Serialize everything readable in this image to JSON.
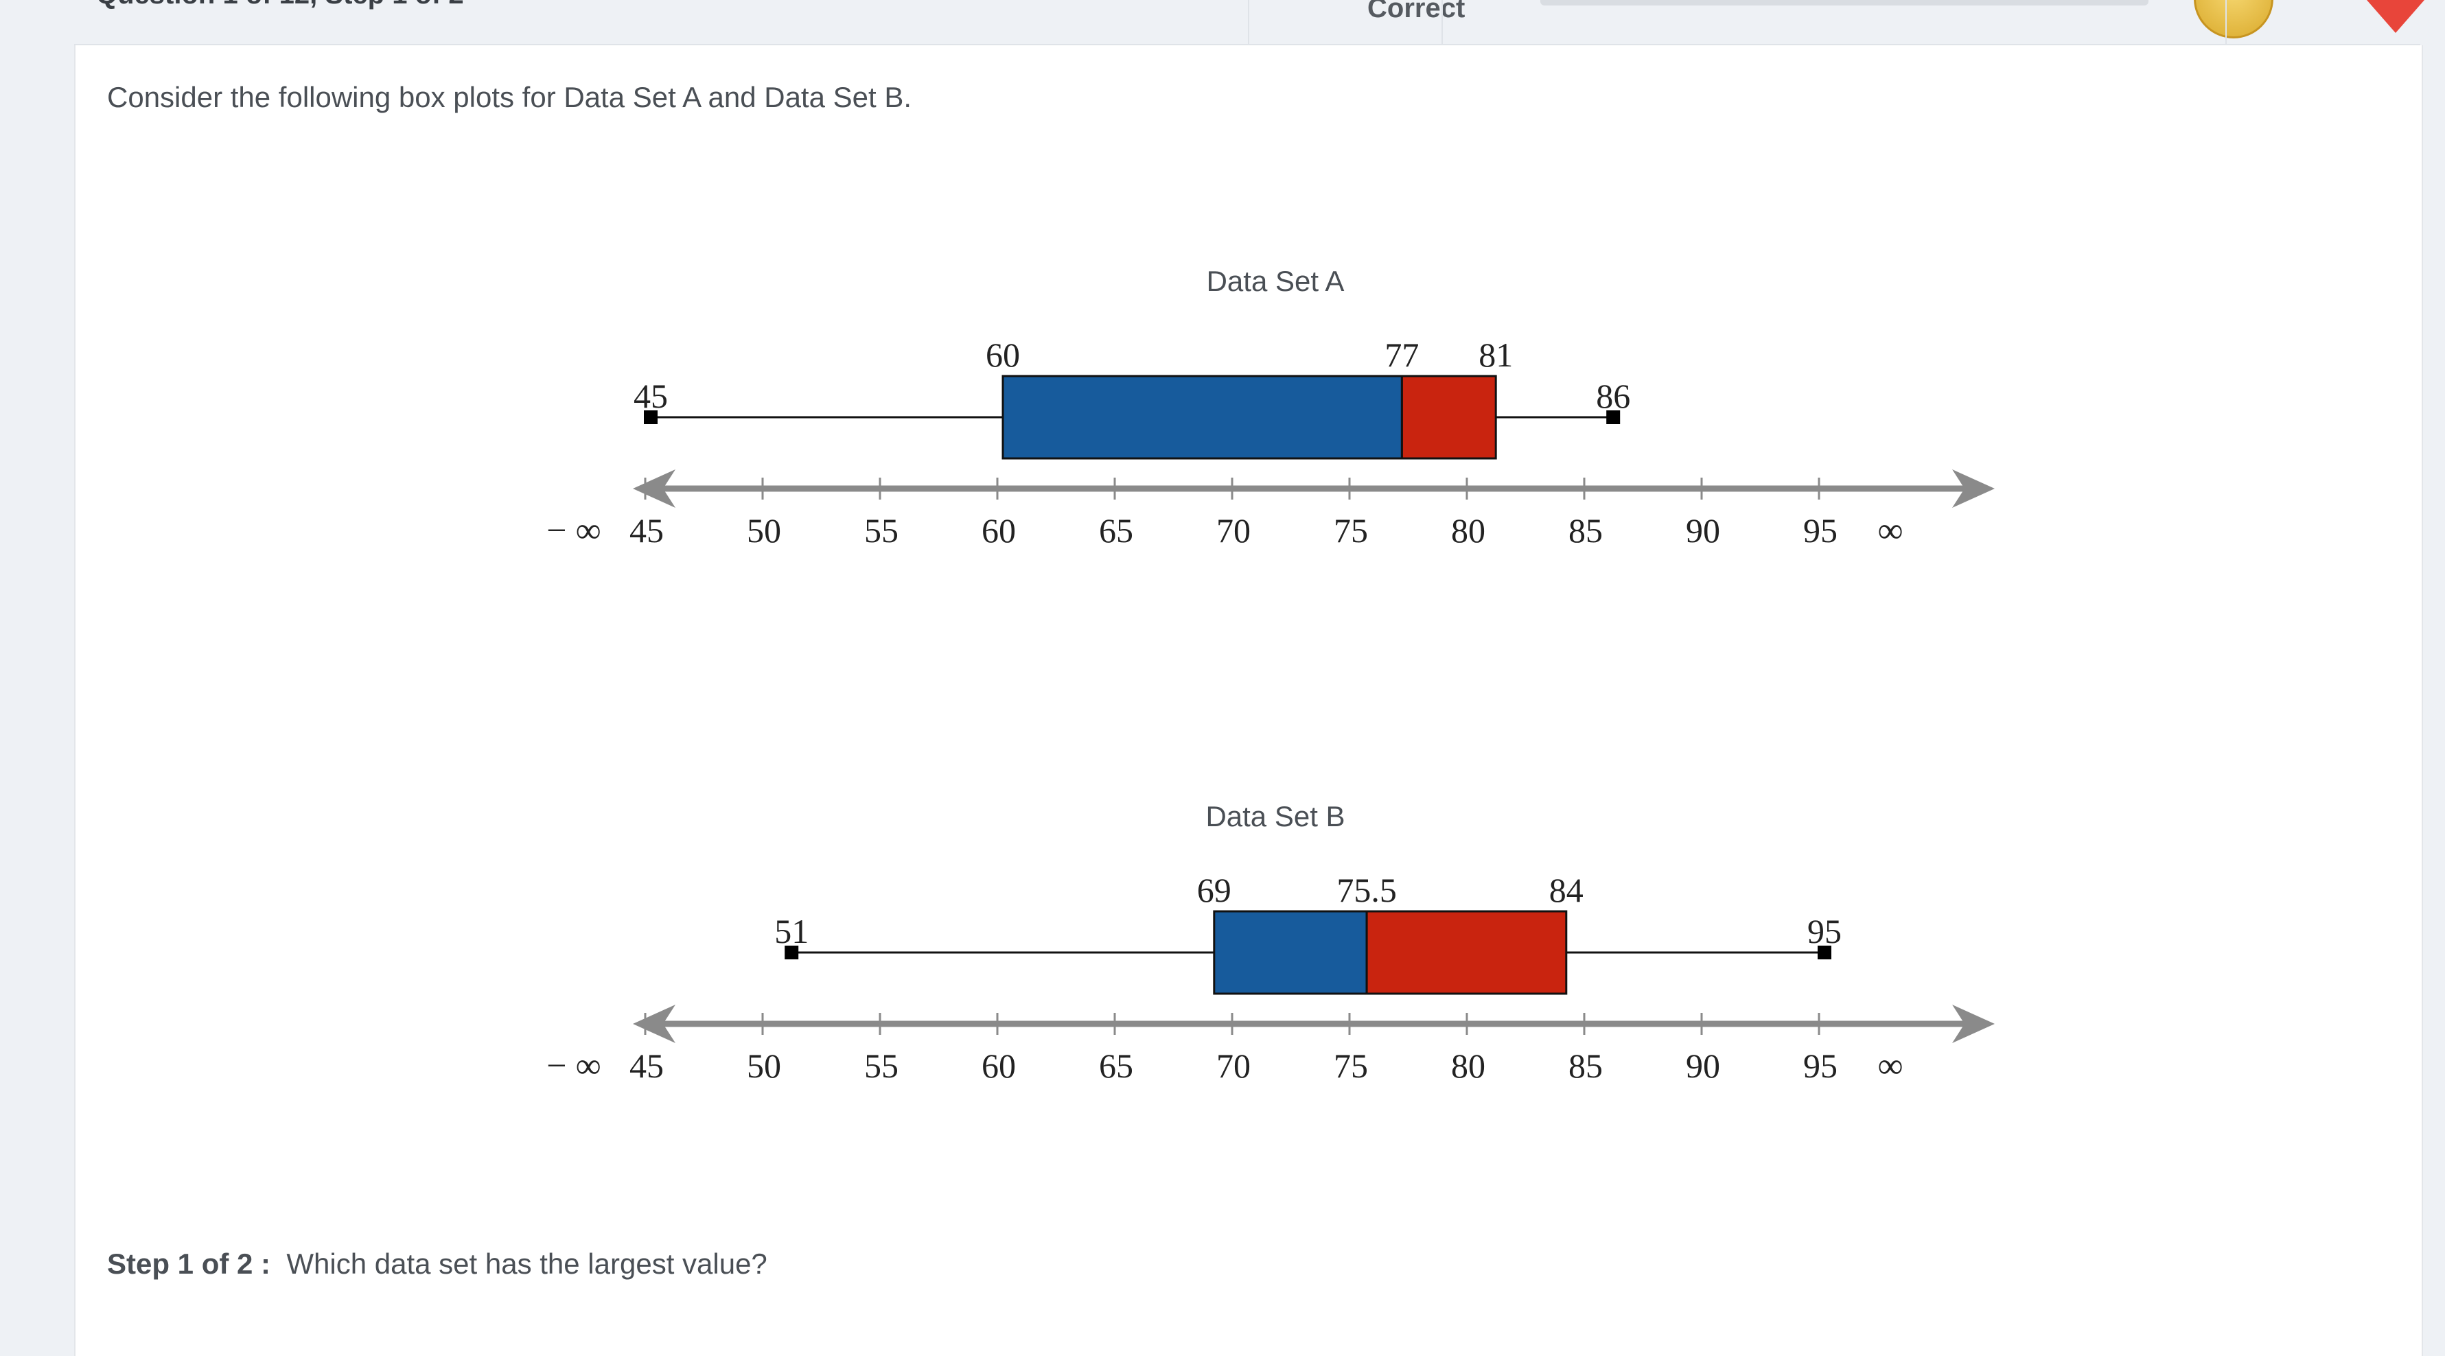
{
  "header": {
    "question_progress": "Question 1 of 12, Step 1 of 2",
    "status": "Correct"
  },
  "prompt": "Consider the following box plots for Data Set A and Data Set B.",
  "step": {
    "label": "Step 1 of 2 :",
    "question": "Which data set has the largest value?"
  },
  "colors": {
    "lower_box": "#175b9c",
    "upper_box": "#c9240f",
    "axis": "#8a8a8a"
  },
  "chart_data": [
    {
      "type": "boxplot",
      "title": "Data Set A",
      "min": 45,
      "q1": 60,
      "median": 77,
      "q3": 81,
      "max": 86,
      "labels": [
        "45",
        "60",
        "77",
        "81",
        "86"
      ],
      "axis": {
        "ticks": [
          45,
          50,
          55,
          60,
          65,
          70,
          75,
          80,
          85,
          90,
          95
        ],
        "tick_labels": [
          "45",
          "50",
          "55",
          "60",
          "65",
          "70",
          "75",
          "80",
          "85",
          "90",
          "95"
        ],
        "left_label": "− ∞",
        "right_label": "∞",
        "range": [
          45,
          95
        ]
      }
    },
    {
      "type": "boxplot",
      "title": "Data Set B",
      "min": 51,
      "q1": 69,
      "median": 75.5,
      "q3": 84,
      "max": 95,
      "labels": [
        "51",
        "69",
        "75.5",
        "84",
        "95"
      ],
      "axis": {
        "ticks": [
          45,
          50,
          55,
          60,
          65,
          70,
          75,
          80,
          85,
          90,
          95
        ],
        "tick_labels": [
          "45",
          "50",
          "55",
          "60",
          "65",
          "70",
          "75",
          "80",
          "85",
          "90",
          "95"
        ],
        "left_label": "− ∞",
        "right_label": "∞",
        "range": [
          45,
          95
        ]
      }
    }
  ]
}
